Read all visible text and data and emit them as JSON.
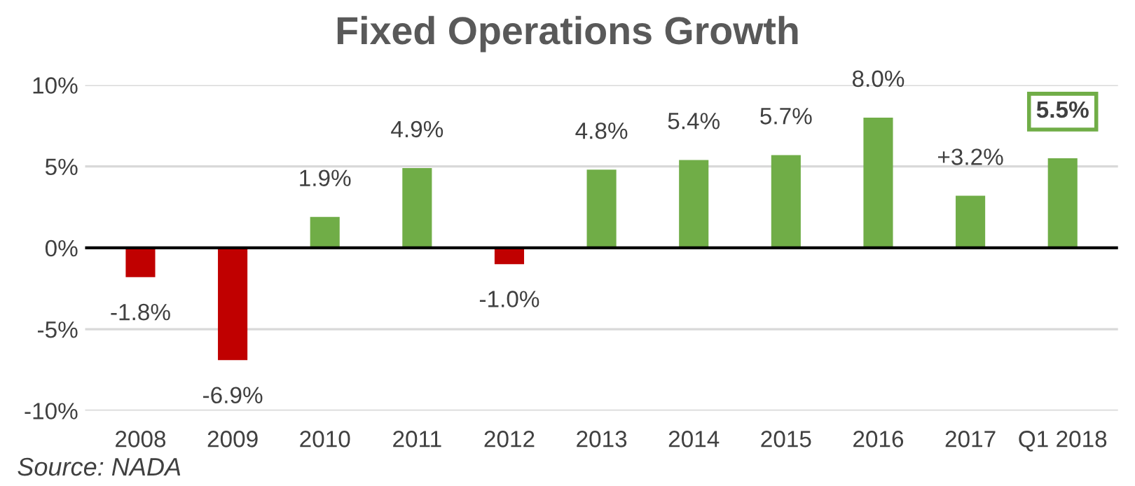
{
  "chart_data": {
    "type": "bar",
    "title": "Fixed Operations Growth",
    "categories": [
      "2008",
      "2009",
      "2010",
      "2011",
      "2012",
      "2013",
      "2014",
      "2015",
      "2016",
      "2017",
      "Q1 2018"
    ],
    "values": [
      -1.8,
      -6.9,
      1.9,
      4.9,
      -1.0,
      4.8,
      5.4,
      5.7,
      8.0,
      3.2,
      5.5
    ],
    "colors": [
      "#c00000",
      "#c00000",
      "#70ad47",
      "#70ad47",
      "#c00000",
      "#70ad47",
      "#70ad47",
      "#70ad47",
      "#70ad47",
      "#70ad47",
      "#70ad47"
    ],
    "value_labels": [
      "-1.8%",
      "-6.9%",
      "1.9%",
      "4.9%",
      "-1.0%",
      "4.8%",
      "5.4%",
      "5.7%",
      "8.0%",
      "+3.2%",
      "5.5%"
    ],
    "ylim": [
      -10,
      10
    ],
    "yticks": [
      {
        "value": -10,
        "label": "-10%"
      },
      {
        "value": -5,
        "label": "-5%"
      },
      {
        "value": 0,
        "label": "0%"
      },
      {
        "value": 5,
        "label": "5%"
      },
      {
        "value": 10,
        "label": "10%"
      }
    ],
    "grid": "y",
    "legend": false,
    "annotations": [
      "Source: NADA"
    ]
  }
}
